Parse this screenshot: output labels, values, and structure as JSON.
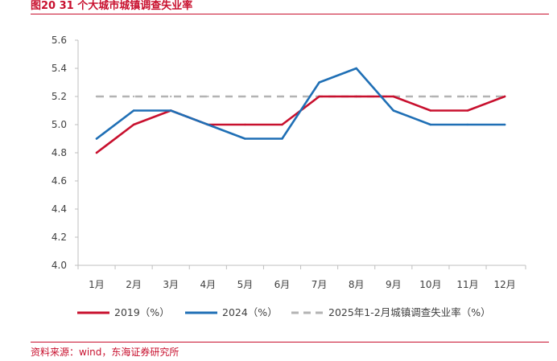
{
  "figure": {
    "title": "图20  31 个大城市城镇调查失业率",
    "source": "资料来源：wind，东海证券研究所"
  },
  "colors": {
    "series_2019": "#c8102e",
    "series_2024": "#1f6fb5",
    "series_2025": "#b3b3b3",
    "accent": "#c8102e"
  },
  "chart_data": {
    "type": "line",
    "categories": [
      "1月",
      "2月",
      "3月",
      "4月",
      "5月",
      "6月",
      "7月",
      "8月",
      "9月",
      "10月",
      "11月",
      "12月"
    ],
    "series": [
      {
        "name": "2019（%）",
        "values": [
          4.8,
          5.0,
          5.1,
          5.0,
          5.0,
          5.0,
          5.2,
          5.2,
          5.2,
          5.1,
          5.1,
          5.2
        ]
      },
      {
        "name": "2024（%）",
        "values": [
          4.9,
          5.1,
          5.1,
          5.0,
          4.9,
          4.9,
          5.3,
          5.4,
          5.1,
          5.0,
          5.0,
          5.0
        ]
      },
      {
        "name": "2025年1-2月城镇调查失业率（%）",
        "values": [
          5.2,
          5.2,
          5.2,
          5.2,
          5.2,
          5.2,
          5.2,
          5.2,
          5.2,
          5.2,
          5.2,
          5.2
        ]
      }
    ],
    "y_ticks": [
      "4.0",
      "4.2",
      "4.4",
      "4.6",
      "4.8",
      "5.0",
      "5.2",
      "5.4",
      "5.6"
    ],
    "ylim": [
      4.0,
      5.6
    ],
    "title": "",
    "xlabel": "",
    "ylabel": "",
    "grid": false,
    "legend_position": "bottom"
  }
}
